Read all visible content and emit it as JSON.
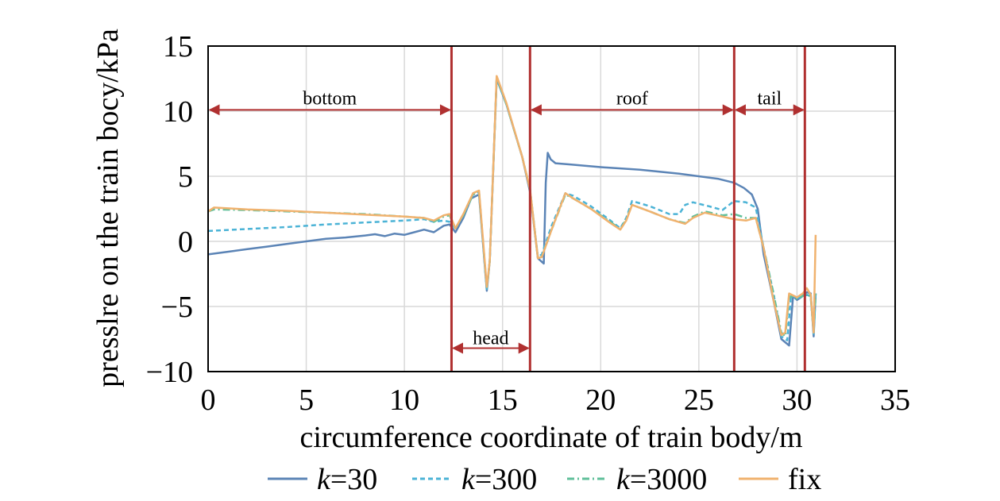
{
  "chart_data": {
    "type": "line",
    "xlabel": "circumference coordinate of train body/m",
    "ylabel": "presslre on the train bocy/kPa",
    "xlim": [
      0,
      35
    ],
    "ylim": [
      -10,
      15
    ],
    "xticks": [
      0,
      5,
      10,
      15,
      20,
      25,
      30,
      35
    ],
    "yticks": [
      -10,
      -5,
      0,
      5,
      10,
      15
    ],
    "ytick_labels": [
      "−10",
      "−5",
      "0",
      "5",
      "10",
      "15"
    ],
    "grid": true,
    "legend_position": "bottom",
    "regions": [
      {
        "label": "bottom",
        "x0": 0,
        "x1": 12.4,
        "y": 10.1,
        "label_y": 11
      },
      {
        "label": "head",
        "x0": 12.4,
        "x1": 16.4,
        "y": -8.2,
        "label_y": -7.4
      },
      {
        "label": "roof",
        "x0": 16.4,
        "x1": 26.8,
        "y": 10.1,
        "label_y": 11
      },
      {
        "label": "tail",
        "x0": 26.8,
        "x1": 30.4,
        "y": 10.1,
        "label_y": 11
      }
    ],
    "boundaries": [
      12.4,
      16.4,
      26.8,
      30.4
    ],
    "series": [
      {
        "name": "k=30",
        "legend_prefix": "k",
        "legend_suffix": "=30",
        "color": "#5b84b6",
        "dash": "",
        "x": [
          0,
          1,
          2,
          3,
          4,
          5,
          6,
          7,
          8,
          8.5,
          9,
          9.5,
          10,
          10.5,
          11,
          11.5,
          12,
          12.3,
          12.6,
          13,
          13.4,
          13.8,
          14.2,
          14.35,
          14.7,
          15.2,
          16,
          16.4,
          16.8,
          17.1,
          17.2,
          17.3,
          17.45,
          17.7,
          18.5,
          20,
          22,
          24,
          26,
          26.8,
          27.3,
          27.7,
          28.0,
          28.3,
          28.8,
          29.2,
          29.6,
          29.8,
          30.0,
          30.2,
          30.5,
          30.7,
          30.85,
          30.95
        ],
        "y": [
          -1,
          -0.8,
          -0.6,
          -0.4,
          -0.2,
          0,
          0.2,
          0.3,
          0.45,
          0.55,
          0.4,
          0.6,
          0.5,
          0.7,
          0.9,
          0.7,
          1.2,
          1.3,
          0.7,
          1.8,
          3.3,
          3.6,
          -3.8,
          -1.5,
          12.5,
          10.5,
          6.5,
          3.8,
          -1.3,
          -1.7,
          4.5,
          6.8,
          6.3,
          6.0,
          5.9,
          5.7,
          5.5,
          5.2,
          4.8,
          4.5,
          4.1,
          3.6,
          2.5,
          -1,
          -4.5,
          -7.5,
          -8.0,
          -4.2,
          -4.5,
          -4.3,
          -3.9,
          -4.0,
          -7.3,
          -4.0
        ]
      },
      {
        "name": "k=300",
        "legend_prefix": "k",
        "legend_suffix": "=300",
        "color": "#4bb3d6",
        "dash": "6 4",
        "x": [
          0,
          2,
          4,
          6,
          8,
          10,
          11,
          11.5,
          12,
          12.3,
          12.6,
          13,
          13.5,
          13.8,
          14.2,
          14.35,
          14.7,
          15.2,
          16,
          16.4,
          16.8,
          17.0,
          17.5,
          18.2,
          18.6,
          19.5,
          20.5,
          21.0,
          21.3,
          21.6,
          22.5,
          23.5,
          24.0,
          24.3,
          24.7,
          25.5,
          26.2,
          26.8,
          27.4,
          27.9,
          28.3,
          28.8,
          29.2,
          29.5,
          29.7,
          30.0,
          30.3,
          30.5,
          30.7,
          30.85,
          30.95
        ],
        "y": [
          0.8,
          0.95,
          1.1,
          1.3,
          1.45,
          1.6,
          1.7,
          1.5,
          1.6,
          1.5,
          1.0,
          2.0,
          3.6,
          3.8,
          -3.8,
          -1.5,
          12.5,
          10.5,
          6.5,
          4.0,
          -1.2,
          -1.0,
          1.2,
          3.7,
          3.5,
          2.7,
          1.6,
          1.0,
          1.8,
          3.1,
          2.7,
          2.1,
          2.1,
          2.8,
          3.0,
          2.7,
          2.4,
          3.1,
          3.0,
          2.6,
          -0.5,
          -4.0,
          -7.3,
          -7.6,
          -4.1,
          -4.4,
          -4.2,
          -4.1,
          -4.2,
          -7.1,
          -4.0
        ]
      },
      {
        "name": "k=3000",
        "legend_prefix": "k",
        "legend_suffix": "=3000",
        "color": "#5fbf9a",
        "dash": "9 4 2 4",
        "x": [
          0,
          0.3,
          2,
          4,
          6,
          8,
          10,
          11,
          11.5,
          12,
          12.3,
          12.6,
          13,
          13.5,
          13.8,
          14.2,
          14.35,
          14.7,
          15.2,
          16,
          16.4,
          16.8,
          17.0,
          17.5,
          18.2,
          18.6,
          19.5,
          20.5,
          21.0,
          21.3,
          21.6,
          22.5,
          23.5,
          24.3,
          24.7,
          25.3,
          26.2,
          26.8,
          27.4,
          27.9,
          28.3,
          28.8,
          29.2,
          29.4,
          29.6,
          30.0,
          30.3,
          30.5,
          30.7,
          30.85,
          30.95
        ],
        "y": [
          2.3,
          2.45,
          2.4,
          2.3,
          2.2,
          2.1,
          1.9,
          1.8,
          1.5,
          1.9,
          2.0,
          1.0,
          2.0,
          3.6,
          3.8,
          -3.6,
          -1.5,
          12.6,
          10.5,
          6.5,
          4.0,
          -1.3,
          -1.2,
          0.9,
          3.6,
          3.3,
          2.5,
          1.5,
          0.9,
          1.7,
          2.8,
          2.3,
          1.7,
          1.4,
          1.9,
          2.3,
          2.0,
          2.1,
          1.8,
          1.8,
          -0.5,
          -4.0,
          -7.0,
          -7.3,
          -4.2,
          -4.4,
          -4.2,
          -4.0,
          -4.3,
          -7.0,
          -4.0
        ]
      },
      {
        "name": "fix",
        "legend_prefix": "",
        "legend_suffix": "fix",
        "color": "#f0b26e",
        "dash": "",
        "x": [
          0,
          0.3,
          2,
          4,
          6,
          8,
          10,
          11,
          11.5,
          12,
          12.3,
          12.6,
          13,
          13.5,
          13.8,
          14.2,
          14.35,
          14.7,
          15.2,
          16,
          16.4,
          16.8,
          17.0,
          17.5,
          18.2,
          18.6,
          19.5,
          20.5,
          21.0,
          21.3,
          21.6,
          22.5,
          23.5,
          24.3,
          24.7,
          25.3,
          26.2,
          26.8,
          27.4,
          27.9,
          28.3,
          28.8,
          29.2,
          29.4,
          29.6,
          30.0,
          30.3,
          30.5,
          30.7,
          30.85,
          30.95
        ],
        "y": [
          2.3,
          2.6,
          2.45,
          2.35,
          2.2,
          2.05,
          1.9,
          1.8,
          1.6,
          2.0,
          2.1,
          1.0,
          2.1,
          3.7,
          3.9,
          -3.5,
          -1.5,
          12.7,
          10.6,
          6.5,
          4.0,
          -1.3,
          -1.2,
          0.9,
          3.7,
          3.3,
          2.5,
          1.4,
          0.9,
          1.6,
          2.8,
          2.3,
          1.7,
          1.35,
          1.8,
          2.2,
          1.9,
          1.7,
          1.6,
          1.8,
          -0.5,
          -4.5,
          -7.2,
          -7.0,
          -4.0,
          -4.3,
          -4.0,
          -3.6,
          -4.1,
          -7.0,
          0.5
        ]
      }
    ]
  }
}
